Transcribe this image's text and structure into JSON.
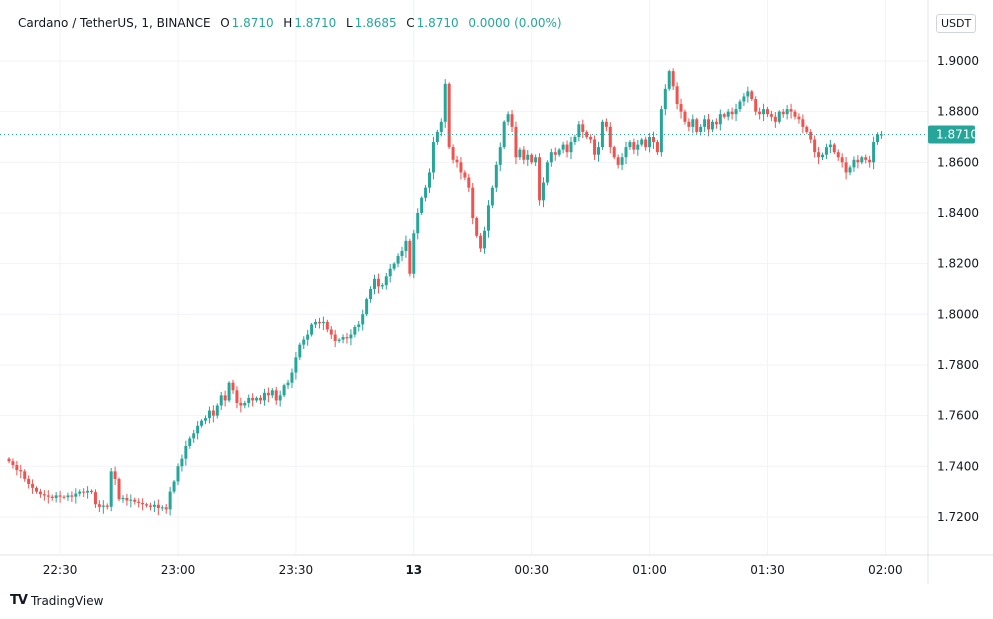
{
  "header": {
    "symbol": "Cardano / TetherUS, 1, BINANCE",
    "o_label": "O",
    "o": "1.8710",
    "h_label": "H",
    "h": "1.8710",
    "l_label": "L",
    "l": "1.8685",
    "c_label": "C",
    "c": "1.8710",
    "change": "0.0000 (0.00%)"
  },
  "currency_button": "USDT",
  "branding": {
    "logo_text": "TradingView"
  },
  "colors": {
    "up": "#26a69a",
    "down": "#ef5350",
    "grid": "#f0f3fa",
    "text": "#131722"
  },
  "chart_data": {
    "type": "candlestick",
    "interval_minutes": 1,
    "start_time": "22:17",
    "first_open": 1.743,
    "current_price": 1.871,
    "current_price_label": "1.8710",
    "ylim": [
      1.7125,
      1.9225
    ],
    "y_ticks": [
      "1.9000",
      "1.8800",
      "1.8600",
      "1.8400",
      "1.8200",
      "1.8000",
      "1.7800",
      "1.7600",
      "1.7400",
      "1.7200"
    ],
    "x_ticks": [
      {
        "label": "22:30",
        "index": 13
      },
      {
        "label": "23:00",
        "index": 43
      },
      {
        "label": "23:30",
        "index": 73
      },
      {
        "label": "13",
        "index": 103,
        "bold": true
      },
      {
        "label": "00:30",
        "index": 133
      },
      {
        "label": "01:00",
        "index": 163
      },
      {
        "label": "01:30",
        "index": 193
      },
      {
        "label": "02:00",
        "index": 223
      }
    ],
    "close": [
      1.742,
      1.7405,
      1.7385,
      1.738,
      1.735,
      1.733,
      1.7315,
      1.73,
      1.729,
      1.7285,
      1.728,
      1.7275,
      1.7285,
      1.728,
      1.7278,
      1.7285,
      1.728,
      1.7292,
      1.73,
      1.7296,
      1.7303,
      1.7298,
      1.725,
      1.724,
      1.7245,
      1.724,
      1.738,
      1.735,
      1.727,
      1.7275,
      1.7265,
      1.7268,
      1.726,
      1.7255,
      1.725,
      1.7245,
      1.724,
      1.7248,
      1.7235,
      1.7238,
      1.723,
      1.73,
      1.734,
      1.74,
      1.743,
      1.748,
      1.751,
      1.753,
      1.756,
      1.758,
      1.759,
      1.762,
      1.76,
      1.764,
      1.768,
      1.766,
      1.773,
      1.77,
      1.765,
      1.764,
      1.765,
      1.767,
      1.766,
      1.767,
      1.766,
      1.769,
      1.768,
      1.77,
      1.766,
      1.768,
      1.772,
      1.773,
      1.777,
      1.783,
      1.788,
      1.79,
      1.792,
      1.796,
      1.797,
      1.7965,
      1.797,
      1.794,
      1.792,
      1.7895,
      1.79,
      1.791,
      1.7905,
      1.792,
      1.795,
      1.796,
      1.8,
      1.806,
      1.81,
      1.814,
      1.811,
      1.8115,
      1.815,
      1.818,
      1.82,
      1.823,
      1.825,
      1.829,
      1.816,
      1.832,
      1.84,
      1.846,
      1.85,
      1.856,
      1.868,
      1.872,
      1.876,
      1.891,
      1.866,
      1.861,
      1.86,
      1.856,
      1.854,
      1.85,
      1.838,
      1.831,
      1.826,
      1.833,
      1.843,
      1.85,
      1.859,
      1.866,
      1.876,
      1.879,
      1.874,
      1.862,
      1.865,
      1.861,
      1.863,
      1.86,
      1.862,
      1.845,
      1.852,
      1.86,
      1.864,
      1.863,
      1.865,
      1.867,
      1.864,
      1.868,
      1.87,
      1.875,
      1.872,
      1.87,
      1.869,
      1.863,
      1.866,
      1.876,
      1.874,
      1.866,
      1.862,
      1.859,
      1.862,
      1.866,
      1.868,
      1.865,
      1.867,
      1.869,
      1.866,
      1.87,
      1.868,
      1.864,
      1.881,
      1.889,
      1.896,
      1.89,
      1.883,
      1.88,
      1.876,
      1.874,
      1.877,
      1.872,
      1.874,
      1.877,
      1.873,
      1.876,
      1.875,
      1.879,
      1.878,
      1.88,
      1.879,
      1.881,
      1.884,
      1.886,
      1.888,
      1.885,
      1.88,
      1.879,
      1.881,
      1.879,
      1.878,
      1.876,
      1.88,
      1.879,
      1.881,
      1.88,
      1.878,
      1.877,
      1.874,
      1.872,
      1.869,
      1.864,
      1.862,
      1.863,
      1.866,
      1.867,
      1.864,
      1.862,
      1.86,
      1.856,
      1.858,
      1.861,
      1.86,
      1.862,
      1.861,
      1.86,
      1.868,
      1.871,
      1.871
    ]
  }
}
